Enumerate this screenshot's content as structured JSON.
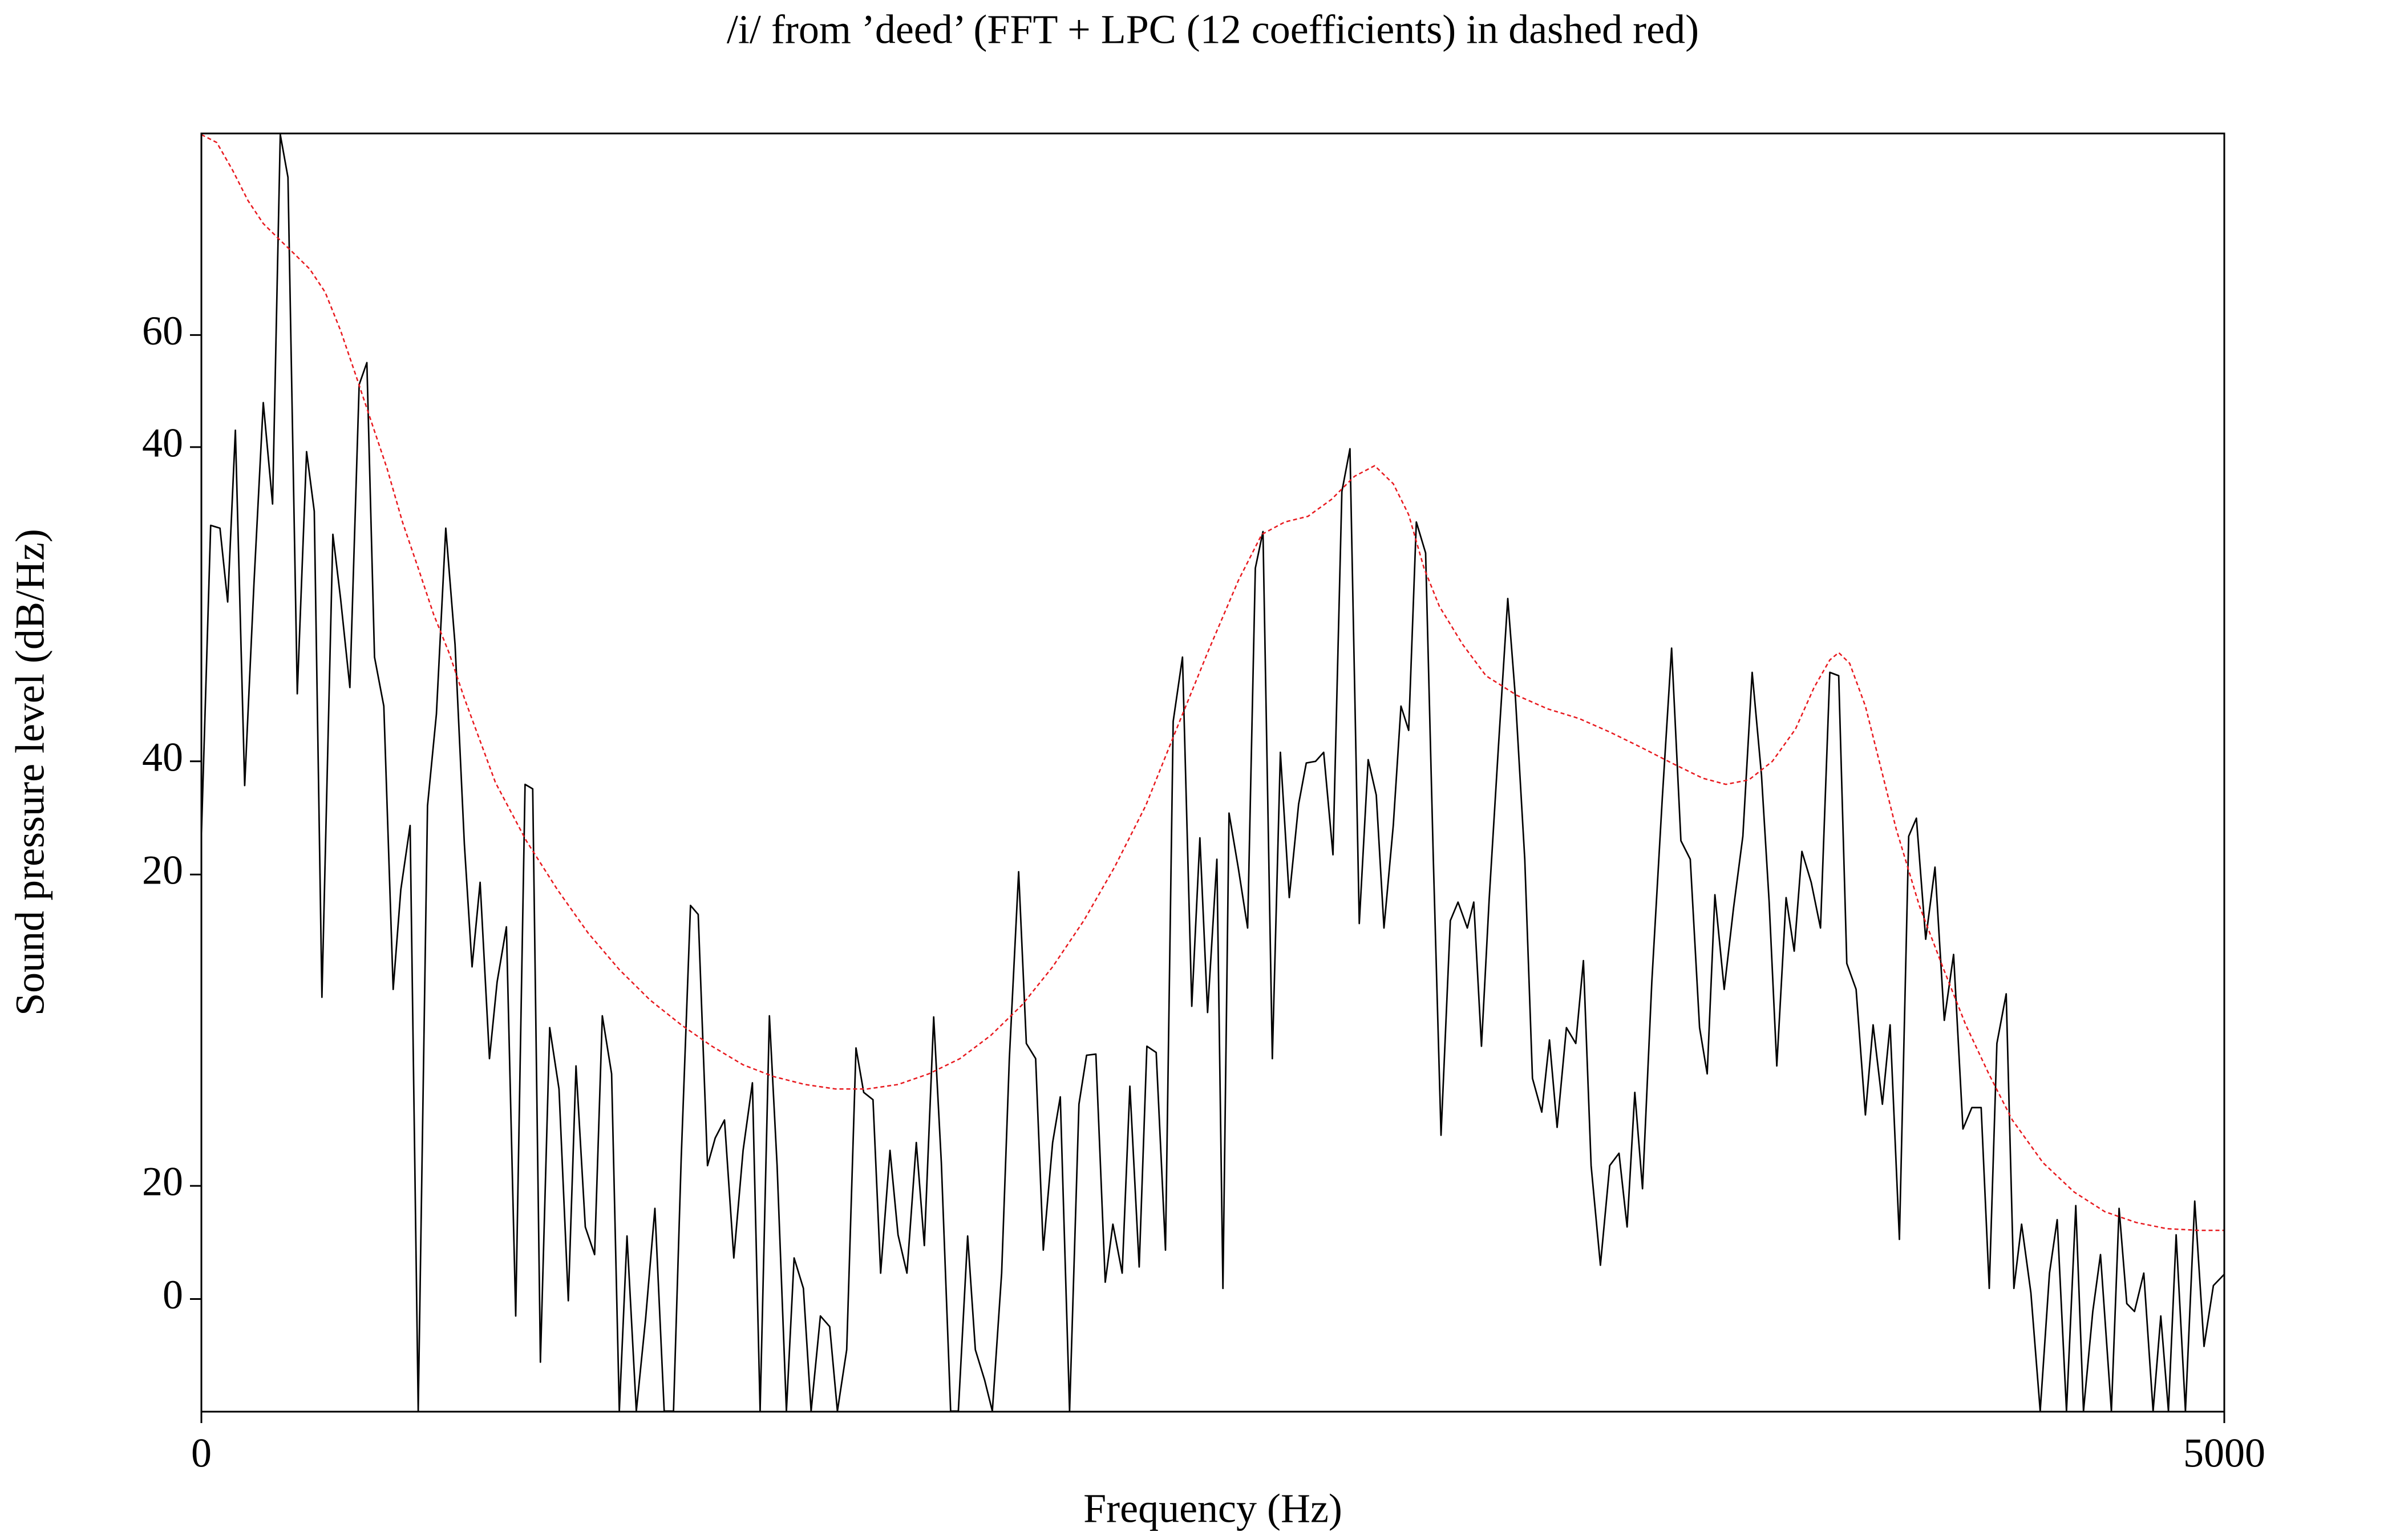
{
  "chart_data": {
    "type": "line",
    "title": "/i/ from ’deed’ (FFT + LPC (12 coefficients) in dashed red)",
    "x_label": "Frequency (Hz)",
    "y_label": "Sound pressure level (dB/Hz)",
    "xlim": [
      0,
      5000
    ],
    "xticks": [
      0,
      5000
    ],
    "ylim": [
      -20,
      207
    ],
    "yticks": [
      {
        "value": 171.2,
        "label": "60"
      },
      {
        "value": 151.3,
        "label": "40"
      },
      {
        "value": 95.5,
        "label": "40"
      },
      {
        "value": 75.4,
        "label": "20"
      },
      {
        "value": 20.1,
        "label": "20"
      },
      0
    ],
    "grid": false,
    "series": [
      {
        "color": "#000000",
        "dashed": false,
        "x": [
          0,
          23,
          46,
          65,
          84,
          107,
          130,
          153,
          176,
          195,
          214,
          237,
          260,
          279,
          298,
          325,
          344,
          367,
          390,
          409,
          428,
          451,
          474,
          493,
          516,
          536,
          559,
          581,
          604,
          627,
          650,
          669,
          689,
          712,
          731,
          754,
          777,
          800,
          819,
          838,
          861,
          884,
          907,
          926,
          949,
          972,
          991,
          1014,
          1033,
          1052,
          1075,
          1098,
          1121,
          1144,
          1167,
          1186,
          1209,
          1228,
          1251,
          1270,
          1293,
          1316,
          1339,
          1362,
          1381,
          1404,
          1423,
          1446,
          1465,
          1488,
          1507,
          1530,
          1553,
          1572,
          1595,
          1618,
          1637,
          1660,
          1679,
          1702,
          1722,
          1744,
          1767,
          1787,
          1810,
          1829,
          1852,
          1871,
          1894,
          1913,
          1936,
          1955,
          1978,
          1997,
          2020,
          2039,
          2062,
          2081,
          2104,
          2123,
          2146,
          2169,
          2188,
          2211,
          2234,
          2253,
          2276,
          2295,
          2318,
          2337,
          2360,
          2383,
          2402,
          2425,
          2448,
          2468,
          2487,
          2510,
          2525,
          2540,
          2563,
          2586,
          2605,
          2624,
          2647,
          2667,
          2689,
          2712,
          2731,
          2754,
          2774,
          2797,
          2819,
          2839,
          2862,
          2884,
          2904,
          2923,
          2946,
          2965,
          2984,
          3003,
          3026,
          3045,
          3064,
          3087,
          3106,
          3129,
          3145,
          3164,
          3183,
          3206,
          3229,
          3248,
          3271,
          3290,
          3313,
          3332,
          3351,
          3374,
          3397,
          3416,
          3435,
          3458,
          3481,
          3504,
          3524,
          3543,
          3562,
          3585,
          3611,
          3634,
          3657,
          3680,
          3703,
          3722,
          3741,
          3764,
          3787,
          3810,
          3833,
          3856,
          3875,
          3894,
          3917,
          3937,
          3956,
          3979,
          4002,
          4025,
          4047,
          4067,
          4090,
          4113,
          4132,
          4155,
          4174,
          4197,
          4220,
          4239,
          4262,
          4285,
          4308,
          4331,
          4354,
          4376,
          4399,
          4419,
          4438,
          4461,
          4480,
          4499,
          4522,
          4545,
          4568,
          4587,
          4610,
          4633,
          4652,
          4675,
          4694,
          4721,
          4740,
          4759,
          4778,
          4801,
          4824,
          4843,
          4862,
          4881,
          4904,
          4927,
          4950,
          4973,
          5000
        ],
        "values": [
          82.2,
          137.4,
          136.9,
          123.8,
          154.3,
          91.2,
          127.1,
          159.2,
          141.2,
          206.8,
          199.2,
          107.5,
          150.5,
          139.9,
          53.6,
          135.8,
          124.4,
          108.6,
          162.4,
          166.3,
          114.0,
          105.3,
          55.0,
          72.7,
          84.1,
          -19.9,
          87.6,
          103.9,
          136.9,
          116.2,
          80.8,
          59.0,
          74.0,
          42.7,
          56.3,
          66.1,
          -3.0,
          91.4,
          90.6,
          -11.2,
          48.2,
          37.3,
          -0.3,
          41.4,
          12.8,
          7.9,
          50.3,
          40.0,
          -19.9,
          11.2,
          -19.9,
          -3.5,
          16.1,
          -19.9,
          -19.9,
          25.0,
          69.9,
          68.3,
          23.7,
          28.6,
          31.8,
          7.3,
          26.4,
          38.4,
          -19.9,
          50.3,
          23.7,
          -19.9,
          7.3,
          1.9,
          -19.9,
          -3.0,
          -4.9,
          -19.9,
          -9.0,
          44.6,
          36.7,
          35.4,
          4.6,
          26.4,
          11.4,
          4.6,
          27.8,
          9.5,
          50.1,
          24.2,
          -19.9,
          -19.9,
          11.2,
          -9.0,
          -14.4,
          -19.9,
          4.6,
          42.7,
          75.9,
          45.4,
          42.7,
          8.7,
          27.8,
          35.9,
          -19.9,
          34.6,
          43.3,
          43.5,
          3.0,
          13.3,
          4.6,
          37.8,
          5.7,
          44.9,
          43.8,
          8.7,
          102.6,
          114.0,
          52.0,
          81.9,
          50.9,
          78.1,
          1.9,
          86.3,
          76.5,
          65.9,
          129.8,
          136.3,
          42.7,
          97.1,
          71.3,
          87.9,
          95.2,
          95.5,
          97.1,
          78.9,
          143.4,
          151.0,
          66.7,
          95.8,
          89.5,
          65.9,
          84.1,
          105.3,
          101.0,
          138.0,
          132.5,
          78.1,
          29.1,
          67.2,
          70.5,
          65.9,
          70.5,
          44.9,
          71.0,
          98.2,
          124.4,
          106.7,
          78.1,
          39.2,
          33.2,
          46.0,
          30.5,
          48.2,
          45.4,
          60.1,
          23.7,
          6.0,
          23.7,
          25.9,
          12.8,
          36.7,
          19.6,
          56.3,
          89.0,
          115.6,
          81.4,
          78.1,
          48.2,
          40.0,
          71.8,
          55.0,
          69.4,
          82.2,
          111.3,
          93.1,
          70.5,
          41.4,
          71.3,
          61.8,
          79.5,
          74.0,
          65.9,
          111.3,
          110.7,
          59.6,
          55.0,
          32.7,
          48.7,
          34.6,
          48.7,
          10.6,
          82.2,
          85.4,
          63.9,
          76.7,
          49.5,
          61.2,
          30.2,
          34.0,
          34.0,
          1.9,
          45.4,
          54.2,
          1.9,
          13.3,
          1.1,
          -19.9,
          4.6,
          14.1,
          -19.9,
          16.6,
          -19.9,
          -2.2,
          7.9,
          -19.9,
          16.1,
          -0.8,
          -2.2,
          4.6,
          -19.9,
          -3.0,
          -19.9,
          11.4,
          -19.9,
          17.4,
          -8.4,
          2.4,
          4.4
        ]
      },
      {
        "color": "#e8191e",
        "dashed": true,
        "x": [
          0,
          38,
          77,
          115,
          153,
          191,
          230,
          268,
          306,
          344,
          383,
          421,
          459,
          497,
          536,
          574,
          612,
          650,
          727,
          803,
          880,
          956,
          1033,
          1109,
          1186,
          1262,
          1339,
          1415,
          1492,
          1568,
          1645,
          1722,
          1798,
          1875,
          1951,
          2028,
          2104,
          2181,
          2257,
          2334,
          2410,
          2487,
          2563,
          2621,
          2678,
          2735,
          2793,
          2850,
          2900,
          2946,
          2984,
          3022,
          3060,
          3118,
          3175,
          3252,
          3328,
          3405,
          3481,
          3558,
          3634,
          3711,
          3768,
          3825,
          3883,
          3940,
          3986,
          4025,
          4047,
          4074,
          4113,
          4151,
          4189,
          4246,
          4304,
          4361,
          4418,
          4476,
          4552,
          4629,
          4705,
          4782,
          4858,
          4935,
          5000
        ],
        "values": [
          206.8,
          205.4,
          200.5,
          195.1,
          191.0,
          188.3,
          185.6,
          182.9,
          178.8,
          172.0,
          163.8,
          155.6,
          147.5,
          138.0,
          129.8,
          121.6,
          114.8,
          106.7,
          91.7,
          81.4,
          72.7,
          65.0,
          58.5,
          53.1,
          48.7,
          44.9,
          41.6,
          39.5,
          38.1,
          37.3,
          37.3,
          38.1,
          40.0,
          42.7,
          46.8,
          52.2,
          59.0,
          67.2,
          76.7,
          87.6,
          101.2,
          114.8,
          127.6,
          135.8,
          138.0,
          139.0,
          142.0,
          146.1,
          148.0,
          144.8,
          139.3,
          129.8,
          123.0,
          116.2,
          110.7,
          107.2,
          104.8,
          103.1,
          100.7,
          98.0,
          95.2,
          92.5,
          91.4,
          92.2,
          95.5,
          101.2,
          108.6,
          113.5,
          114.8,
          112.9,
          105.3,
          94.4,
          83.5,
          69.9,
          59.0,
          48.7,
          40.0,
          31.8,
          24.2,
          19.0,
          15.5,
          13.6,
          12.5,
          12.2,
          12.2
        ]
      }
    ]
  }
}
